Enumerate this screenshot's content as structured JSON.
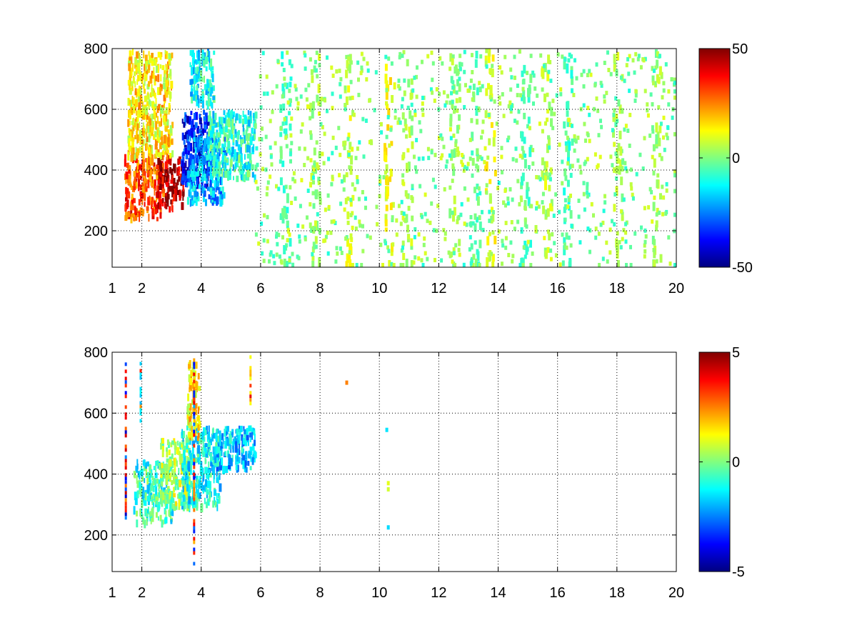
{
  "chart_data": [
    {
      "type": "heatmap",
      "title": "",
      "xlabel": "",
      "ylabel": "",
      "xlim": [
        1,
        20
      ],
      "ylim": [
        80,
        800
      ],
      "grid": true,
      "x_ticks": [
        1,
        2,
        4,
        6,
        8,
        10,
        12,
        14,
        16,
        18,
        20
      ],
      "y_ticks": [
        200,
        400,
        600,
        800
      ],
      "colormap": "jet",
      "clim": [
        -50,
        50
      ],
      "colorbar_ticks": [
        -50,
        0,
        50
      ],
      "missing_values": "blank",
      "regions": [
        {
          "x": [
            1.4,
            2.7
          ],
          "y": [
            240,
            460
          ],
          "value": 30
        },
        {
          "x": [
            2.5,
            3.4
          ],
          "y": [
            280,
            450
          ],
          "value": 45
        },
        {
          "x": [
            1.5,
            3.0
          ],
          "y": [
            450,
            800
          ],
          "value": 14
        },
        {
          "x": [
            3.3,
            4.2
          ],
          "y": [
            350,
            600
          ],
          "value": -35
        },
        {
          "x": [
            3.5,
            4.8
          ],
          "y": [
            300,
            520
          ],
          "value": -20
        },
        {
          "x": [
            4.2,
            5.8
          ],
          "y": [
            380,
            600
          ],
          "value": -10
        },
        {
          "x": [
            3.6,
            4.4
          ],
          "y": [
            620,
            800
          ],
          "value": -12
        }
      ],
      "streaks": [
        {
          "x": 6.8,
          "value": -5
        },
        {
          "x": 7.8,
          "value": 3
        },
        {
          "x": 8.9,
          "value": 8
        },
        {
          "x": 10.3,
          "value": 12
        },
        {
          "x": 10.9,
          "value": 5
        },
        {
          "x": 12.5,
          "value": 2
        },
        {
          "x": 13.2,
          "value": -3
        },
        {
          "x": 13.7,
          "value": 10
        },
        {
          "x": 14.9,
          "value": -4
        },
        {
          "x": 15.6,
          "value": 6
        },
        {
          "x": 16.3,
          "value": -6
        },
        {
          "x": 18.0,
          "value": 4
        },
        {
          "x": 19.3,
          "value": 3
        }
      ],
      "scatter_value_range": [
        -10,
        10
      ]
    },
    {
      "type": "heatmap",
      "title": "",
      "xlabel": "",
      "ylabel": "",
      "xlim": [
        1,
        20
      ],
      "ylim": [
        80,
        800
      ],
      "grid": true,
      "x_ticks": [
        1,
        2,
        4,
        6,
        8,
        10,
        12,
        14,
        16,
        18,
        20
      ],
      "y_ticks": [
        200,
        400,
        600,
        800
      ],
      "colormap": "jet",
      "clim": [
        -5,
        5
      ],
      "colorbar_ticks": [
        -5,
        0,
        5
      ],
      "missing_values": "blank",
      "regions": [
        {
          "x": [
            1.7,
            3.0
          ],
          "y": [
            250,
            450
          ],
          "value": -0.8
        },
        {
          "x": [
            2.6,
            3.6
          ],
          "y": [
            300,
            520
          ],
          "value": 0.4
        },
        {
          "x": [
            3.3,
            4.6
          ],
          "y": [
            300,
            560
          ],
          "value": -1.2
        },
        {
          "x": [
            4.4,
            5.8
          ],
          "y": [
            420,
            560
          ],
          "value": -1.8
        },
        {
          "x": [
            3.5,
            3.9
          ],
          "y": [
            520,
            780
          ],
          "value": 1.5
        }
      ],
      "columns": [
        {
          "x": 1.45,
          "y": [
            260,
            790
          ],
          "values": [
            -4.5,
            4.5
          ]
        },
        {
          "x": 1.95,
          "y": [
            580,
            780
          ],
          "values": [
            3.8,
            -2
          ]
        },
        {
          "x": 3.75,
          "y": [
            90,
            780
          ],
          "values": [
            -4,
            4
          ]
        },
        {
          "x": 5.65,
          "y": [
            620,
            790
          ],
          "values": [
            4,
            2
          ]
        }
      ],
      "points": [
        {
          "x": 8.9,
          "y": 700,
          "value": 2.5
        },
        {
          "x": 10.25,
          "y": 545,
          "value": -1.5
        },
        {
          "x": 10.3,
          "y": 370,
          "value": 1.0
        },
        {
          "x": 10.3,
          "y": 350,
          "value": 0.8
        },
        {
          "x": 10.3,
          "y": 225,
          "value": -1.6
        }
      ]
    }
  ]
}
